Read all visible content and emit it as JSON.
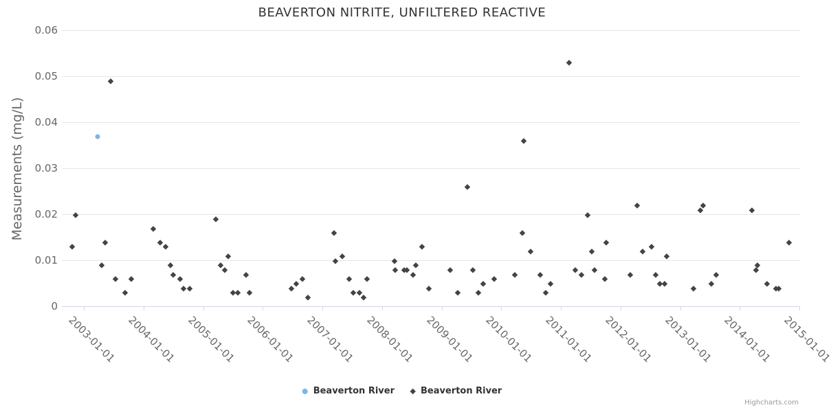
{
  "title": "BEAVERTON NITRITE, UNFILTERED REACTIVE",
  "credits": "Highcharts.com",
  "y_axis": {
    "title": "Measurements (mg/L)",
    "tick_labels": [
      "0",
      "0.01",
      "0.02",
      "0.03",
      "0.04",
      "0.05",
      "0.06"
    ]
  },
  "x_axis": {
    "tick_labels": [
      "2003-01-01",
      "2004-01-01",
      "2005-01-01",
      "2006-01-01",
      "2007-01-01",
      "2008-01-01",
      "2009-01-01",
      "2010-01-01",
      "2011-01-01",
      "2012-01-01",
      "2013-01-01",
      "2014-01-01",
      "2015-01-01"
    ]
  },
  "legend": [
    {
      "name": "Beaverton River",
      "marker": "circle",
      "color": "#7cb5ec"
    },
    {
      "name": "Beaverton River",
      "marker": "diamond",
      "color": "#434348"
    }
  ],
  "chart_data": {
    "type": "scatter",
    "title": "BEAVERTON NITRITE, UNFILTERED REACTIVE",
    "xlabel": "",
    "ylabel": "Measurements (mg/L)",
    "ylim": [
      0,
      0.06
    ],
    "xlim": [
      "2002-09-01",
      "2015-01-01"
    ],
    "grid": "horizontal",
    "legend_position": "bottom-center",
    "series": [
      {
        "name": "Beaverton River",
        "color": "#7cb5ec",
        "marker": "circle",
        "points": [
          [
            "2003-03-25",
            0.037
          ]
        ]
      },
      {
        "name": "Beaverton River",
        "color": "#434348",
        "marker": "diamond",
        "points": [
          [
            "2002-10-20",
            0.013
          ],
          [
            "2002-11-10",
            0.02
          ],
          [
            "2003-04-19",
            0.009
          ],
          [
            "2003-05-10",
            0.014
          ],
          [
            "2003-06-13",
            0.049
          ],
          [
            "2003-07-13",
            0.006
          ],
          [
            "2003-09-09",
            0.003
          ],
          [
            "2003-10-17",
            0.006
          ],
          [
            "2004-03-04",
            0.017
          ],
          [
            "2004-04-15",
            0.014
          ],
          [
            "2004-05-15",
            0.013
          ],
          [
            "2004-06-17",
            0.009
          ],
          [
            "2004-07-01",
            0.007
          ],
          [
            "2004-08-15",
            0.006
          ],
          [
            "2004-09-01",
            0.004
          ],
          [
            "2004-10-09",
            0.004
          ],
          [
            "2005-03-19",
            0.019
          ],
          [
            "2005-04-17",
            0.009
          ],
          [
            "2005-05-13",
            0.008
          ],
          [
            "2005-06-03",
            0.011
          ],
          [
            "2005-07-02",
            0.003
          ],
          [
            "2005-08-01",
            0.003
          ],
          [
            "2005-09-20",
            0.007
          ],
          [
            "2005-10-11",
            0.003
          ],
          [
            "2006-06-25",
            0.004
          ],
          [
            "2006-07-24",
            0.005
          ],
          [
            "2006-08-31",
            0.006
          ],
          [
            "2006-10-04",
            0.002
          ],
          [
            "2007-03-13",
            0.016
          ],
          [
            "2007-03-21",
            0.01
          ],
          [
            "2007-05-02",
            0.011
          ],
          [
            "2007-06-13",
            0.006
          ],
          [
            "2007-07-08",
            0.003
          ],
          [
            "2007-08-15",
            0.003
          ],
          [
            "2007-09-10",
            0.002
          ],
          [
            "2007-09-30",
            0.006
          ],
          [
            "2008-03-17",
            0.01
          ],
          [
            "2008-03-25",
            0.008
          ],
          [
            "2008-05-15",
            0.008
          ],
          [
            "2008-06-01",
            0.008
          ],
          [
            "2008-07-09",
            0.007
          ],
          [
            "2008-07-26",
            0.009
          ],
          [
            "2008-09-01",
            0.013
          ],
          [
            "2008-10-14",
            0.004
          ],
          [
            "2009-02-21",
            0.008
          ],
          [
            "2009-04-09",
            0.003
          ],
          [
            "2009-06-07",
            0.026
          ],
          [
            "2009-07-10",
            0.008
          ],
          [
            "2009-08-13",
            0.003
          ],
          [
            "2009-09-11",
            0.005
          ],
          [
            "2009-11-18",
            0.006
          ],
          [
            "2010-03-24",
            0.007
          ],
          [
            "2010-05-09",
            0.016
          ],
          [
            "2010-05-18",
            0.036
          ],
          [
            "2010-06-29",
            0.012
          ],
          [
            "2010-08-27",
            0.007
          ],
          [
            "2010-09-29",
            0.003
          ],
          [
            "2010-10-29",
            0.005
          ],
          [
            "2011-02-19",
            0.053
          ],
          [
            "2011-03-29",
            0.008
          ],
          [
            "2011-05-06",
            0.007
          ],
          [
            "2011-06-13",
            0.02
          ],
          [
            "2011-07-08",
            0.012
          ],
          [
            "2011-07-25",
            0.008
          ],
          [
            "2011-09-26",
            0.006
          ],
          [
            "2011-10-05",
            0.014
          ],
          [
            "2012-03-04",
            0.007
          ],
          [
            "2012-04-11",
            0.022
          ],
          [
            "2012-05-15",
            0.012
          ],
          [
            "2012-07-09",
            0.013
          ],
          [
            "2012-08-03",
            0.007
          ],
          [
            "2012-08-28",
            0.005
          ],
          [
            "2012-09-27",
            0.005
          ],
          [
            "2012-10-09",
            0.011
          ],
          [
            "2013-03-23",
            0.004
          ],
          [
            "2013-05-04",
            0.021
          ],
          [
            "2013-05-21",
            0.022
          ],
          [
            "2013-07-10",
            0.005
          ],
          [
            "2013-08-09",
            0.007
          ],
          [
            "2014-03-16",
            0.021
          ],
          [
            "2014-04-10",
            0.008
          ],
          [
            "2014-04-18",
            0.009
          ],
          [
            "2014-06-16",
            0.005
          ],
          [
            "2014-08-10",
            0.004
          ],
          [
            "2014-08-27",
            0.004
          ],
          [
            "2014-10-29",
            0.014
          ]
        ]
      }
    ]
  }
}
